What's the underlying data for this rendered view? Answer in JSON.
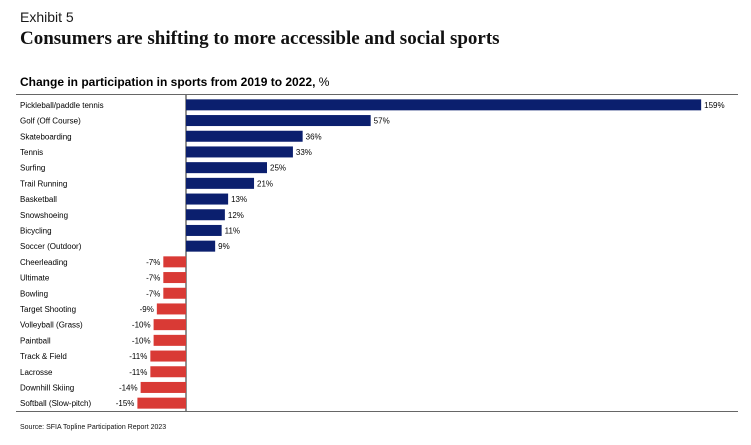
{
  "header": {
    "exhibit": "Exhibit 5",
    "title": "Consumers are shifting to more accessible and social sports"
  },
  "chart_data": {
    "type": "bar",
    "orientation": "horizontal",
    "title": "Change in participation in sports from 2019 to 2022,",
    "unit": "%",
    "categories": [
      "Pickleball/paddle tennis",
      "Golf (Off Course)",
      "Skateboarding",
      "Tennis",
      "Surfing",
      "Trail Running",
      "Basketball",
      "Snowshoeing",
      "Bicycling",
      "Soccer (Outdoor)",
      "Cheerleading",
      "Ultimate",
      "Bowling",
      "Target Shooting",
      "Volleyball (Grass)",
      "Paintball",
      "Track & Field",
      "Lacrosse",
      "Downhill Skiing",
      "Softball (Slow-pitch)"
    ],
    "values": [
      159,
      57,
      36,
      33,
      25,
      21,
      13,
      12,
      11,
      9,
      -7,
      -7,
      -7,
      -9,
      -10,
      -10,
      -11,
      -11,
      -14,
      -15
    ],
    "data_labels": [
      "159%",
      "57%",
      "36%",
      "33%",
      "25%",
      "21%",
      "13%",
      "12%",
      "11%",
      "9%",
      "-7%",
      "-7%",
      "-7%",
      "-9%",
      "-10%",
      "-10%",
      "-11%",
      "-11%",
      "-14%",
      "-15%"
    ],
    "xlim": [
      -25,
      160
    ],
    "colors": {
      "positive": "#0b1f6e",
      "negative": "#d93a35",
      "axis": "#222222"
    }
  },
  "footer": {
    "source": "Source: SFIA Topline Participation Report 2023"
  }
}
